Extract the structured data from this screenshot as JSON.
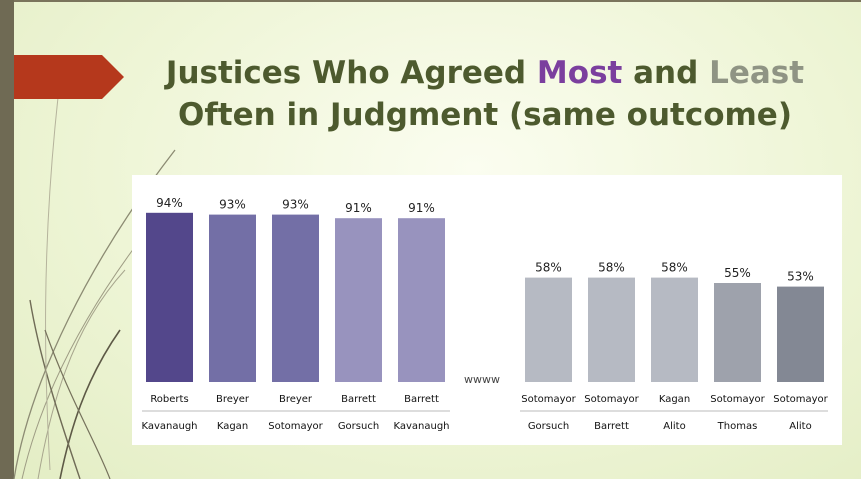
{
  "title": {
    "part1": "Justices Who Agreed ",
    "most": "Most",
    "part2": " and ",
    "least": "Least",
    "line2": "Often in Judgment (same outcome)"
  },
  "gap_marker": "wwww",
  "chart_data": {
    "type": "bar",
    "categories_top": [
      "Roberts",
      "Breyer",
      "Breyer",
      "Barrett",
      "Barrett",
      "Sotomayor",
      "Sotomayor",
      "Kagan",
      "Sotomayor",
      "Sotomayor"
    ],
    "categories_bottom": [
      "Kavanaugh",
      "Kagan",
      "Sotomayor",
      "Gorsuch",
      "Kavanaugh",
      "Gorsuch",
      "Barrett",
      "Alito",
      "Thomas",
      "Alito"
    ],
    "values": [
      94,
      93,
      93,
      91,
      91,
      58,
      58,
      58,
      55,
      53
    ],
    "value_labels": [
      "94%",
      "93%",
      "93%",
      "91%",
      "91%",
      "58%",
      "58%",
      "58%",
      "55%",
      "53%"
    ],
    "groups": [
      "most",
      "most",
      "most",
      "most",
      "most",
      "least",
      "least",
      "least",
      "least",
      "least"
    ],
    "colors": [
      "#53478b",
      "#736fa6",
      "#736fa6",
      "#9893be",
      "#9893be",
      "#b6bac3",
      "#b6bac3",
      "#b6bac3",
      "#9ea2ac",
      "#838894"
    ],
    "ylim": [
      0,
      100
    ],
    "grid": false,
    "legend": "none"
  }
}
